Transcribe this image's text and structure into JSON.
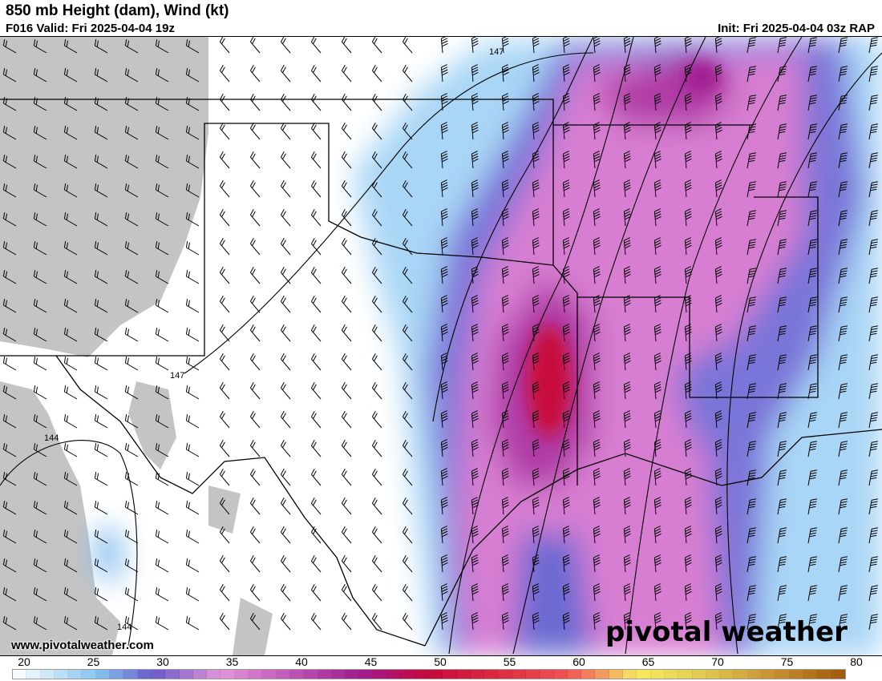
{
  "header": {
    "title": "850 mb Height (dam), Wind (kt)",
    "valid": "F016 Valid: Fri 2025-04-04 19z",
    "init": "Init: Fri 2025-04-04 03z RAP"
  },
  "map": {
    "contour_labels": [
      "147",
      "147",
      "144",
      "144"
    ],
    "terrain_color": "#c4c4c4",
    "site": "www.pivotalweather.com",
    "logo": "pivotal weather"
  },
  "colorbar": {
    "units": "kt",
    "min": 20,
    "max": 80,
    "labels": [
      "20",
      "25",
      "30",
      "35",
      "40",
      "45",
      "50",
      "55",
      "60",
      "65",
      "70",
      "75",
      "80"
    ],
    "color_stops": [
      {
        "v": 20,
        "c": "#ffffff"
      },
      {
        "v": 23,
        "c": "#c6e4f8"
      },
      {
        "v": 26,
        "c": "#86c6f0"
      },
      {
        "v": 28,
        "c": "#7896e0"
      },
      {
        "v": 30,
        "c": "#6a58cc"
      },
      {
        "v": 33,
        "c": "#b07ed2"
      },
      {
        "v": 35,
        "c": "#e496dc"
      },
      {
        "v": 40,
        "c": "#c056b8"
      },
      {
        "v": 45,
        "c": "#a01c90"
      },
      {
        "v": 50,
        "c": "#c8083c"
      },
      {
        "v": 55,
        "c": "#dc2c40"
      },
      {
        "v": 60,
        "c": "#f05454"
      },
      {
        "v": 63,
        "c": "#f4a860"
      },
      {
        "v": 65,
        "c": "#f8ec60"
      },
      {
        "v": 70,
        "c": "#e0c850"
      },
      {
        "v": 75,
        "c": "#c89030"
      },
      {
        "v": 80,
        "c": "#a05808"
      }
    ]
  }
}
